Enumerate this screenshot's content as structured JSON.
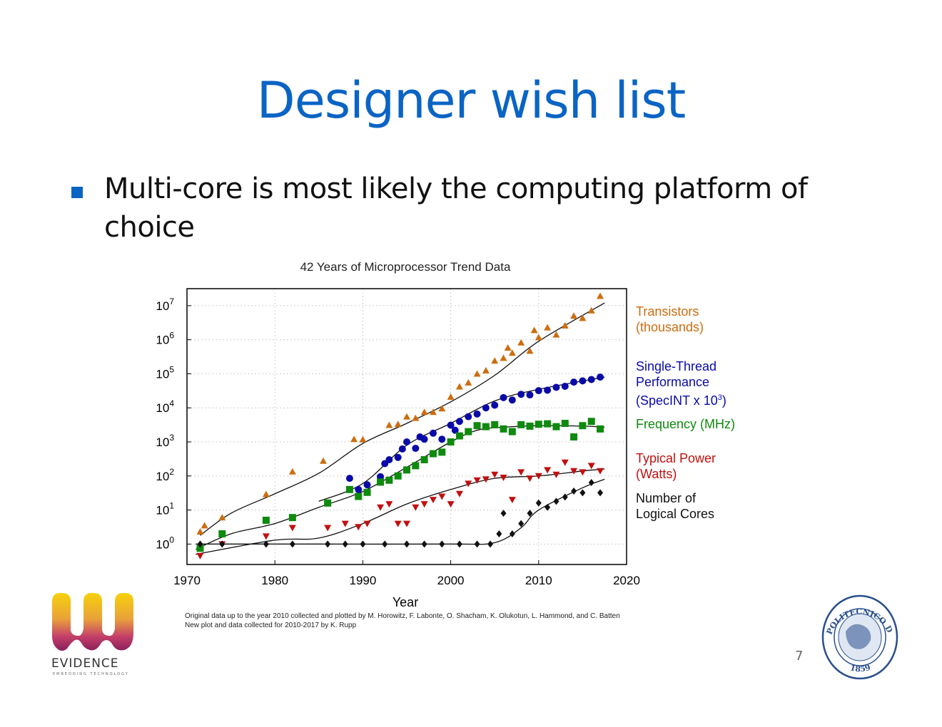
{
  "slide": {
    "title": "Designer wish list",
    "bullet": "Multi-core is most likely the computing platform of choice",
    "page_number": "7",
    "credits_line1": "Original data up to the year 2010 collected and plotted by M. Horowitz, F. Labonte, O. Shacham, K. Olukotun, L. Hammond, and C. Batten",
    "credits_line2": "New plot and data collected for 2010-2017 by K. Rupp",
    "logo_text": "EVIDENCE",
    "logo_tagline": "EMBEDDING TECHNOLOGY",
    "seal_text_top": "POLITECNICO DI TORINO",
    "seal_text_bottom": "1859"
  },
  "colors": {
    "accent": "#0a64c4",
    "transistors": "#cc6d10",
    "single_thread": "#0a0aa8",
    "frequency": "#0e8a0e",
    "power": "#c20f0f",
    "cores": "#111111"
  },
  "chart_data": {
    "type": "scatter",
    "title": "42 Years of Microprocessor Trend Data",
    "xlabel": "Year",
    "ylabel": "",
    "xlim": [
      1970,
      2020
    ],
    "ylim_log10": [
      -0.6,
      7.5
    ],
    "yscale": "log",
    "x_ticks": [
      "1970",
      "1980",
      "1990",
      "2000",
      "2010",
      "2020"
    ],
    "y_ticks": [
      "10^0",
      "10^1",
      "10^2",
      "10^3",
      "10^4",
      "10^5",
      "10^6",
      "10^7"
    ],
    "grid": true,
    "legend_position": "right",
    "series": [
      {
        "name": "Transistors (thousands)",
        "legend_lines": [
          "Transistors",
          "(thousands)"
        ],
        "marker": "triangle-up",
        "color": "#cc6d10",
        "points": [
          [
            1971.5,
            2.3
          ],
          [
            1972,
            3.5
          ],
          [
            1974,
            6
          ],
          [
            1979,
            29
          ],
          [
            1982,
            134
          ],
          [
            1985.5,
            275
          ],
          [
            1989,
            1200
          ],
          [
            1990,
            1180
          ],
          [
            1993,
            3100
          ],
          [
            1994,
            3300
          ],
          [
            1995,
            5500
          ],
          [
            1996,
            5000
          ],
          [
            1997,
            7500
          ],
          [
            1998,
            7500
          ],
          [
            1999,
            9500
          ],
          [
            2000,
            21000
          ],
          [
            2001,
            42000
          ],
          [
            2002,
            55000
          ],
          [
            2003,
            100000
          ],
          [
            2004,
            125000
          ],
          [
            2005,
            240000
          ],
          [
            2006,
            290000
          ],
          [
            2006.5,
            580000
          ],
          [
            2007,
            410000
          ],
          [
            2008,
            820000
          ],
          [
            2009,
            470000
          ],
          [
            2009.5,
            1900000
          ],
          [
            2010,
            1170000
          ],
          [
            2011,
            2270000
          ],
          [
            2012,
            1400000
          ],
          [
            2013,
            2600000
          ],
          [
            2014,
            5000000
          ],
          [
            2015,
            4300000
          ],
          [
            2016,
            7200000
          ],
          [
            2017,
            19200000
          ]
        ],
        "trend": [
          [
            1971.5,
            1.8
          ],
          [
            1975,
            8
          ],
          [
            1980,
            30
          ],
          [
            1985,
            120
          ],
          [
            1990,
            900
          ],
          [
            1995,
            3500
          ],
          [
            2000,
            15000
          ],
          [
            2005,
            90000
          ],
          [
            2010,
            900000
          ],
          [
            2017.5,
            12000000
          ]
        ]
      },
      {
        "name": "Single-Thread Performance (SpecINT x 10^3)",
        "legend_lines": [
          "Single-Thread",
          "Performance",
          "(SpecINT x 10"
        ],
        "legend_sup": "3",
        "marker": "circle",
        "color": "#0a0aa8",
        "points": [
          [
            1988.5,
            85
          ],
          [
            1989.5,
            40
          ],
          [
            1990.5,
            55
          ],
          [
            1992,
            95
          ],
          [
            1992.5,
            230
          ],
          [
            1993,
            300
          ],
          [
            1994,
            350
          ],
          [
            1994.5,
            620
          ],
          [
            1995,
            1000
          ],
          [
            1996,
            650
          ],
          [
            1996.5,
            1400
          ],
          [
            1997,
            1200
          ],
          [
            1998,
            1800
          ],
          [
            1999,
            1200
          ],
          [
            2000,
            3100
          ],
          [
            2000.5,
            2200
          ],
          [
            2001,
            4000
          ],
          [
            2002,
            5500
          ],
          [
            2003,
            6600
          ],
          [
            2004,
            10000
          ],
          [
            2005,
            12000
          ],
          [
            2006,
            20000
          ],
          [
            2007,
            17000
          ],
          [
            2008,
            25000
          ],
          [
            2009,
            24000
          ],
          [
            2010,
            32000
          ],
          [
            2011,
            33000
          ],
          [
            2012,
            40000
          ],
          [
            2013,
            43000
          ],
          [
            2014,
            57000
          ],
          [
            2015,
            62000
          ],
          [
            2016,
            68000
          ],
          [
            2017,
            80000
          ]
        ],
        "trend": [
          [
            1985,
            18
          ],
          [
            1990,
            60
          ],
          [
            1995,
            800
          ],
          [
            2000,
            3500
          ],
          [
            2005,
            16000
          ],
          [
            2010,
            35000
          ],
          [
            2017.5,
            80000
          ]
        ]
      },
      {
        "name": "Frequency (MHz)",
        "legend_lines": [
          "Frequency (MHz)"
        ],
        "marker": "square",
        "color": "#0e8a0e",
        "points": [
          [
            1971.5,
            0.75
          ],
          [
            1974,
            2
          ],
          [
            1979,
            5
          ],
          [
            1982,
            6
          ],
          [
            1986,
            16
          ],
          [
            1988.5,
            40
          ],
          [
            1989.5,
            25
          ],
          [
            1990.5,
            33
          ],
          [
            1992,
            66
          ],
          [
            1993,
            75
          ],
          [
            1994,
            100
          ],
          [
            1995,
            150
          ],
          [
            1996,
            200
          ],
          [
            1997,
            300
          ],
          [
            1998,
            450
          ],
          [
            1999,
            500
          ],
          [
            2000,
            1000
          ],
          [
            2001,
            1500
          ],
          [
            2002,
            2000
          ],
          [
            2003,
            3000
          ],
          [
            2004,
            2800
          ],
          [
            2005,
            3200
          ],
          [
            2006,
            2400
          ],
          [
            2007,
            2000
          ],
          [
            2008,
            3200
          ],
          [
            2009,
            2900
          ],
          [
            2010,
            3300
          ],
          [
            2011,
            3400
          ],
          [
            2012,
            2800
          ],
          [
            2013,
            3500
          ],
          [
            2014,
            1400
          ],
          [
            2015,
            3000
          ],
          [
            2016,
            4000
          ],
          [
            2017,
            2400
          ]
        ],
        "trend": [
          [
            1971,
            0.7
          ],
          [
            1975,
            2
          ],
          [
            1980,
            4
          ],
          [
            1985,
            12
          ],
          [
            1990,
            35
          ],
          [
            1995,
            180
          ],
          [
            2000,
            1000
          ],
          [
            2003,
            2200
          ],
          [
            2006,
            2700
          ],
          [
            2010,
            3000
          ],
          [
            2015,
            2900
          ],
          [
            2017.5,
            2700
          ]
        ]
      },
      {
        "name": "Typical Power (Watts)",
        "legend_lines": [
          "Typical Power",
          "(Watts)"
        ],
        "marker": "triangle-down",
        "color": "#c20f0f",
        "points": [
          [
            1971.5,
            0.45
          ],
          [
            1974,
            1
          ],
          [
            1979,
            1.7
          ],
          [
            1982,
            3
          ],
          [
            1986,
            3
          ],
          [
            1988,
            4
          ],
          [
            1989.5,
            3.2
          ],
          [
            1990.5,
            4
          ],
          [
            1992,
            12
          ],
          [
            1993,
            15
          ],
          [
            1994,
            4
          ],
          [
            1995,
            4
          ],
          [
            1996,
            12
          ],
          [
            1997,
            15
          ],
          [
            1998,
            20
          ],
          [
            1999,
            25
          ],
          [
            2000,
            15
          ],
          [
            2001,
            30
          ],
          [
            2002,
            60
          ],
          [
            2003,
            75
          ],
          [
            2004,
            80
          ],
          [
            2005,
            110
          ],
          [
            2006,
            90
          ],
          [
            2007,
            20
          ],
          [
            2008,
            130
          ],
          [
            2009,
            85
          ],
          [
            2010,
            100
          ],
          [
            2011,
            150
          ],
          [
            2012,
            110
          ],
          [
            2013,
            250
          ],
          [
            2014,
            140
          ],
          [
            2015,
            130
          ],
          [
            2016,
            200
          ],
          [
            2017,
            140
          ]
        ],
        "trend": [
          [
            1971,
            0.5
          ],
          [
            1980,
            1.3
          ],
          [
            1985,
            1.5
          ],
          [
            1990,
            4
          ],
          [
            1995,
            15
          ],
          [
            2000,
            40
          ],
          [
            2005,
            85
          ],
          [
            2010,
            100
          ],
          [
            2015,
            140
          ],
          [
            2017.5,
            160
          ]
        ]
      },
      {
        "name": "Number of Logical Cores",
        "legend_lines": [
          "Number of",
          "Logical Cores"
        ],
        "marker": "diamond",
        "color": "#111111",
        "points": [
          [
            1971.5,
            1
          ],
          [
            1974,
            1
          ],
          [
            1979,
            1
          ],
          [
            1982,
            1
          ],
          [
            1986,
            1
          ],
          [
            1988,
            1
          ],
          [
            1990,
            1
          ],
          [
            1992.5,
            1
          ],
          [
            1995,
            1
          ],
          [
            1997,
            1
          ],
          [
            1999,
            1
          ],
          [
            2001,
            1
          ],
          [
            2003,
            1
          ],
          [
            2004.5,
            1
          ],
          [
            2005.5,
            2
          ],
          [
            2006,
            8
          ],
          [
            2007,
            2
          ],
          [
            2008,
            4
          ],
          [
            2009,
            8
          ],
          [
            2010,
            16
          ],
          [
            2011,
            12
          ],
          [
            2012,
            18
          ],
          [
            2013,
            24
          ],
          [
            2014,
            36
          ],
          [
            2015,
            32
          ],
          [
            2016,
            64
          ],
          [
            2017,
            32
          ]
        ],
        "trend": [
          [
            1971,
            1
          ],
          [
            1985,
            1
          ],
          [
            2000,
            1
          ],
          [
            2005,
            1.1
          ],
          [
            2008,
            3
          ],
          [
            2010,
            10
          ],
          [
            2015,
            45
          ],
          [
            2017.5,
            80
          ]
        ]
      }
    ]
  }
}
